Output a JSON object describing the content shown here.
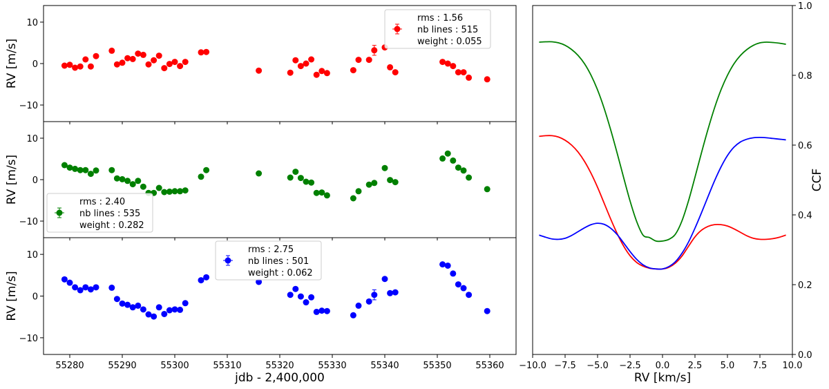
{
  "chart_data": [
    {
      "type": "scatter",
      "panel": "rv-top",
      "ylabel": "RV [m/s]",
      "xlabel": "",
      "xlim": [
        55275,
        55365
      ],
      "ylim": [
        -14,
        14
      ],
      "yticks": [
        -10,
        0,
        10
      ],
      "color": "#ff0000",
      "legend": {
        "rms": "rms : 1.56",
        "lines": "nb lines : 515",
        "weight": "weight : 0.055",
        "loc": "top-right"
      },
      "series": [
        {
          "name": "RV",
          "x": [
            55279,
            55280,
            55281,
            55282,
            55283,
            55284,
            55285,
            55288,
            55289,
            55290,
            55291,
            55292,
            55293,
            55294,
            55295,
            55296,
            55297,
            55298,
            55299,
            55300,
            55301,
            55302,
            55305,
            55306,
            55316,
            55322,
            55323,
            55324,
            55325,
            55326,
            55327,
            55328,
            55329,
            55334,
            55335,
            55337,
            55338,
            55340,
            55341,
            55342,
            55351,
            55352,
            55353,
            55354,
            55355,
            55356,
            55359.5
          ],
          "y": [
            -0.5,
            -0.3,
            -1.0,
            -0.7,
            1.0,
            -0.7,
            1.8,
            3.1,
            -0.2,
            0.2,
            1.3,
            1.1,
            2.4,
            2.1,
            -0.2,
            0.8,
            1.9,
            -1.1,
            -0.1,
            0.4,
            -0.6,
            0.4,
            2.7,
            2.8,
            -1.7,
            -2.2,
            0.8,
            -0.6,
            0.0,
            1.0,
            -2.7,
            -1.8,
            -2.3,
            -1.6,
            0.9,
            0.9,
            3.2,
            3.9,
            -0.9,
            -2.1,
            0.4,
            0.0,
            -0.6,
            -2.1,
            -2.1,
            -3.4,
            -3.8
          ],
          "err": [
            0.5,
            0.5,
            0.5,
            0.5,
            0.5,
            0.5,
            0.5,
            0.5,
            0.5,
            0.5,
            0.5,
            0.5,
            0.5,
            0.5,
            0.5,
            0.5,
            0.5,
            0.5,
            0.5,
            0.5,
            0.5,
            0.5,
            0.5,
            0.5,
            0.5,
            0.5,
            0.5,
            0.5,
            0.5,
            0.5,
            0.5,
            0.5,
            0.5,
            0.5,
            0.5,
            0.5,
            1.2,
            0.5,
            0.5,
            0.5,
            0.5,
            0.5,
            0.5,
            0.5,
            0.5,
            0.5,
            0.5
          ]
        }
      ]
    },
    {
      "type": "scatter",
      "panel": "rv-middle",
      "ylabel": "RV [m/s]",
      "xlabel": "",
      "xlim": [
        55275,
        55365
      ],
      "ylim": [
        -14,
        14
      ],
      "yticks": [
        -10,
        0,
        10
      ],
      "color": "#008000",
      "legend": {
        "rms": "rms : 2.40",
        "lines": "nb lines : 535",
        "weight": "weight : 0.282",
        "loc": "bottom-left"
      },
      "series": [
        {
          "name": "RV",
          "x": [
            55279,
            55280,
            55281,
            55282,
            55283,
            55284,
            55285,
            55288,
            55289,
            55290,
            55291,
            55292,
            55293,
            55294,
            55295,
            55296,
            55297,
            55298,
            55299,
            55300,
            55301,
            55302,
            55305,
            55306,
            55316,
            55322,
            55323,
            55324,
            55325,
            55326,
            55327,
            55328,
            55329,
            55334,
            55335,
            55337,
            55338,
            55340,
            55341,
            55342,
            55351,
            55352,
            55353,
            55354,
            55355,
            55356,
            55359.5
          ],
          "y": [
            3.5,
            2.9,
            2.6,
            2.3,
            2.3,
            1.4,
            2.2,
            2.3,
            0.3,
            0.1,
            -0.3,
            -1.1,
            -0.3,
            -1.7,
            -3.2,
            -3.2,
            -2.0,
            -3.0,
            -2.9,
            -2.8,
            -2.8,
            -2.6,
            0.7,
            2.3,
            1.5,
            0.5,
            1.9,
            0.4,
            -0.5,
            -0.7,
            -3.2,
            -3.1,
            -3.8,
            -4.5,
            -2.8,
            -1.2,
            -0.8,
            2.8,
            -0.1,
            -0.6,
            5.1,
            6.3,
            4.6,
            2.9,
            2.2,
            0.5,
            -2.3
          ],
          "err": [
            0.5,
            0.5,
            0.5,
            0.5,
            0.5,
            0.5,
            0.5,
            0.5,
            0.5,
            0.5,
            0.5,
            0.5,
            0.5,
            0.5,
            0.5,
            0.5,
            0.5,
            0.5,
            0.5,
            0.5,
            0.5,
            0.5,
            0.5,
            0.5,
            0.5,
            0.5,
            0.5,
            0.5,
            0.5,
            0.5,
            0.5,
            0.5,
            0.5,
            0.5,
            0.5,
            0.5,
            0.5,
            0.5,
            0.5,
            0.5,
            0.5,
            0.5,
            0.5,
            0.5,
            0.5,
            0.5,
            0.5
          ]
        }
      ]
    },
    {
      "type": "scatter",
      "panel": "rv-bottom",
      "ylabel": "RV [m/s]",
      "xlabel": "jdb - 2,400,000",
      "xlim": [
        55275,
        55365
      ],
      "ylim": [
        -14,
        14
      ],
      "yticks": [
        -10,
        0,
        10
      ],
      "xticks": [
        55280,
        55290,
        55300,
        55310,
        55320,
        55330,
        55340,
        55350,
        55360
      ],
      "color": "#0000ff",
      "legend": {
        "rms": "rms : 2.75",
        "lines": "nb lines : 501",
        "weight": "weight : 0.062",
        "loc": "top-center"
      },
      "series": [
        {
          "name": "RV",
          "x": [
            55279,
            55280,
            55281,
            55282,
            55283,
            55284,
            55285,
            55288,
            55289,
            55290,
            55291,
            55292,
            55293,
            55294,
            55295,
            55296,
            55297,
            55298,
            55299,
            55300,
            55301,
            55302,
            55305,
            55306,
            55316,
            55322,
            55323,
            55324,
            55325,
            55326,
            55327,
            55328,
            55329,
            55334,
            55335,
            55337,
            55338,
            55340,
            55341,
            55342,
            55351,
            55352,
            55353,
            55354,
            55355,
            55356,
            55359.5
          ],
          "y": [
            4.0,
            3.2,
            2.1,
            1.4,
            2.1,
            1.6,
            2.1,
            2.0,
            -0.7,
            -1.8,
            -2.1,
            -2.7,
            -2.3,
            -3.2,
            -4.4,
            -4.9,
            -2.7,
            -4.3,
            -3.4,
            -3.2,
            -3.3,
            -1.7,
            3.8,
            4.5,
            3.4,
            0.3,
            1.7,
            -0.1,
            -1.5,
            -0.3,
            -3.8,
            -3.5,
            -3.6,
            -4.6,
            -2.3,
            -1.3,
            0.3,
            4.1,
            0.7,
            0.9,
            7.6,
            7.3,
            5.4,
            2.8,
            1.9,
            0.3,
            -3.6
          ],
          "err": [
            0.5,
            0.5,
            0.5,
            0.5,
            0.5,
            0.5,
            0.5,
            0.5,
            0.5,
            0.5,
            0.5,
            0.5,
            0.5,
            0.5,
            0.5,
            0.5,
            0.5,
            0.5,
            0.5,
            0.5,
            0.5,
            0.5,
            0.5,
            0.5,
            0.5,
            0.5,
            0.5,
            0.5,
            0.5,
            0.5,
            0.5,
            0.5,
            0.5,
            0.5,
            0.5,
            0.5,
            1.2,
            0.5,
            0.5,
            0.5,
            0.5,
            0.5,
            0.5,
            0.5,
            0.5,
            0.5,
            0.5
          ]
        }
      ]
    },
    {
      "type": "line",
      "panel": "ccf",
      "xlabel": "RV [km/s]",
      "ylabel": "CCF",
      "xlim": [
        -10.0,
        10.0
      ],
      "ylim": [
        0.0,
        1.0
      ],
      "xticks": [
        -10.0,
        -7.5,
        -5.0,
        -2.5,
        0.0,
        2.5,
        5.0,
        7.5,
        10.0
      ],
      "xtick_labels": [
        "−10.0",
        "−7.5",
        "−5.0",
        "−2.5",
        "0.0",
        "2.5",
        "5.0",
        "7.5",
        "10.0"
      ],
      "yticks": [
        0.0,
        0.2,
        0.4,
        0.6,
        0.8,
        1.0
      ],
      "ytick_labels": [
        "0.0",
        "0.2",
        "0.4",
        "0.6",
        "0.8",
        "1.0"
      ],
      "series": [
        {
          "name": "green",
          "color": "#008000",
          "x": [
            -9.5,
            -9.0,
            -8.5,
            -8.0,
            -7.5,
            -7.0,
            -6.5,
            -6.0,
            -5.5,
            -5.0,
            -4.5,
            -4.0,
            -3.5,
            -3.0,
            -2.5,
            -2.0,
            -1.5,
            -1.0,
            -0.5,
            0.0,
            0.5,
            1.0,
            1.5,
            2.0,
            2.5,
            3.0,
            3.5,
            4.0,
            4.5,
            5.0,
            5.5,
            6.0,
            6.5,
            7.0,
            7.5,
            8.0,
            8.5,
            9.0,
            9.5
          ],
          "y": [
            0.895,
            0.896,
            0.896,
            0.893,
            0.886,
            0.874,
            0.857,
            0.833,
            0.8,
            0.758,
            0.706,
            0.645,
            0.578,
            0.508,
            0.44,
            0.382,
            0.342,
            0.335,
            0.325,
            0.325,
            0.33,
            0.345,
            0.383,
            0.44,
            0.508,
            0.578,
            0.645,
            0.706,
            0.758,
            0.8,
            0.833,
            0.857,
            0.874,
            0.886,
            0.893,
            0.895,
            0.894,
            0.892,
            0.889
          ]
        },
        {
          "name": "red",
          "color": "#ff0000",
          "x": [
            -9.5,
            -9.0,
            -8.5,
            -8.0,
            -7.5,
            -7.0,
            -6.5,
            -6.0,
            -5.5,
            -5.0,
            -4.5,
            -4.0,
            -3.5,
            -3.0,
            -2.5,
            -2.0,
            -1.5,
            -1.0,
            -0.5,
            0.0,
            0.5,
            1.0,
            1.5,
            2.0,
            2.5,
            3.0,
            3.5,
            4.0,
            4.5,
            5.0,
            5.5,
            6.0,
            6.5,
            7.0,
            7.5,
            8.0,
            8.5,
            9.0,
            9.5
          ],
          "y": [
            0.625,
            0.627,
            0.627,
            0.623,
            0.614,
            0.6,
            0.58,
            0.553,
            0.519,
            0.479,
            0.434,
            0.389,
            0.347,
            0.311,
            0.283,
            0.264,
            0.253,
            0.247,
            0.245,
            0.245,
            0.25,
            0.262,
            0.282,
            0.31,
            0.337,
            0.356,
            0.367,
            0.372,
            0.372,
            0.368,
            0.36,
            0.35,
            0.34,
            0.333,
            0.33,
            0.33,
            0.332,
            0.336,
            0.342
          ]
        },
        {
          "name": "blue",
          "color": "#0000ff",
          "x": [
            -9.5,
            -9.0,
            -8.5,
            -8.0,
            -7.5,
            -7.0,
            -6.5,
            -6.0,
            -5.5,
            -5.0,
            -4.5,
            -4.0,
            -3.5,
            -3.0,
            -2.5,
            -2.0,
            -1.5,
            -1.0,
            -0.5,
            0.0,
            0.5,
            1.0,
            1.5,
            2.0,
            2.5,
            3.0,
            3.5,
            4.0,
            4.5,
            5.0,
            5.5,
            6.0,
            6.5,
            7.0,
            7.5,
            8.0,
            8.5,
            9.0,
            9.5
          ],
          "y": [
            0.342,
            0.336,
            0.331,
            0.33,
            0.333,
            0.341,
            0.352,
            0.363,
            0.372,
            0.376,
            0.373,
            0.362,
            0.344,
            0.32,
            0.295,
            0.273,
            0.257,
            0.248,
            0.245,
            0.245,
            0.252,
            0.266,
            0.29,
            0.322,
            0.362,
            0.406,
            0.452,
            0.497,
            0.537,
            0.57,
            0.594,
            0.609,
            0.617,
            0.621,
            0.622,
            0.621,
            0.619,
            0.617,
            0.615
          ]
        }
      ]
    }
  ]
}
